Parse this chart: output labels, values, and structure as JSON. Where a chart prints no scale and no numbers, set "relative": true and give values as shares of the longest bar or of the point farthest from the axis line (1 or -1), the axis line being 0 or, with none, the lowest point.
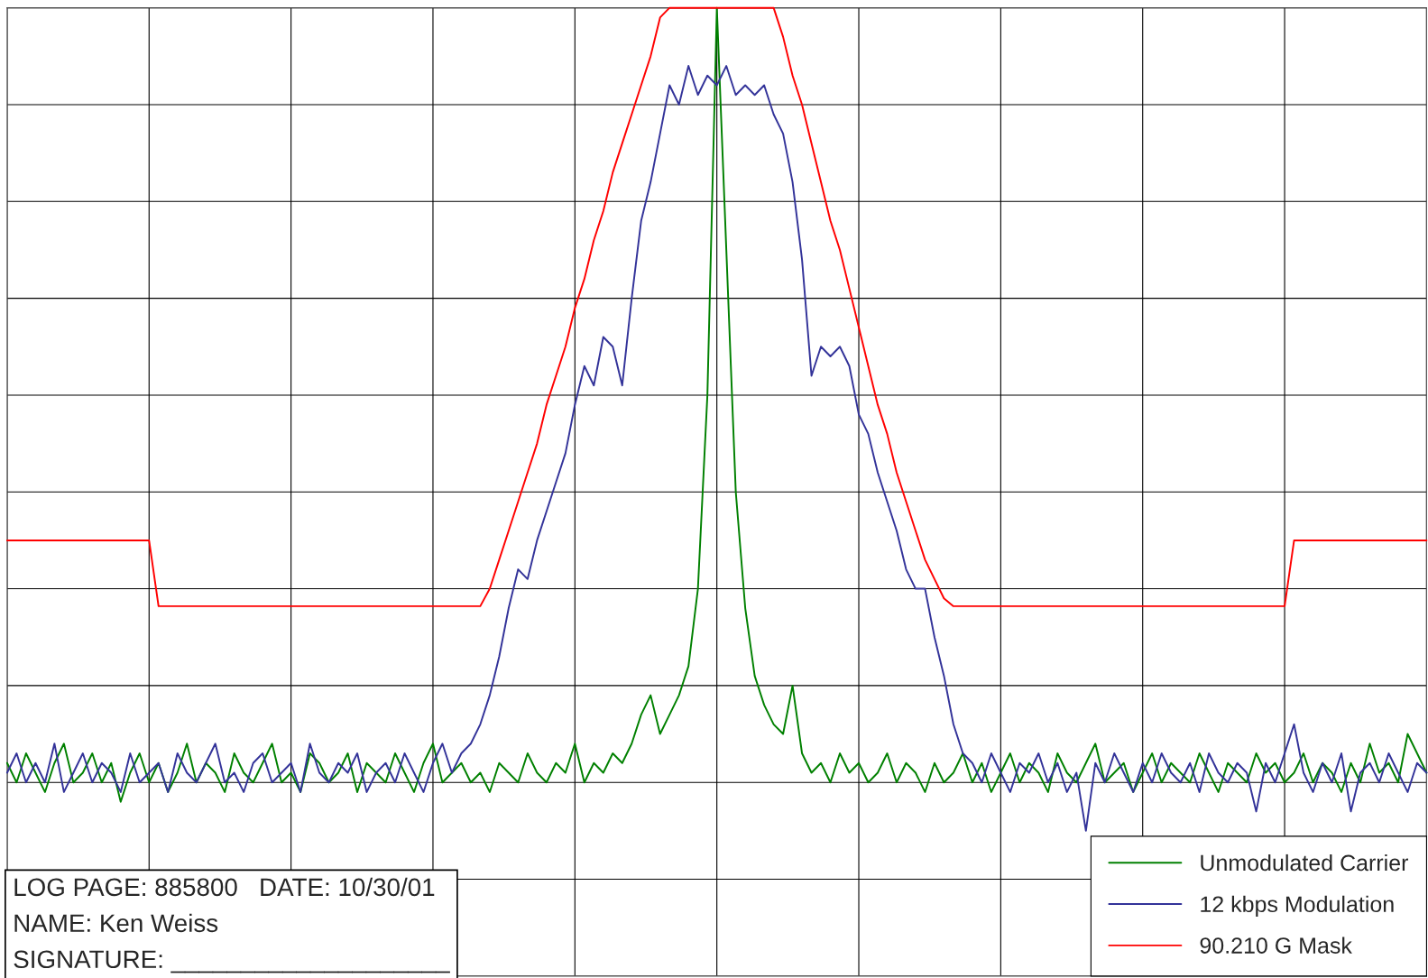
{
  "chart_data": {
    "type": "line",
    "relative": true,
    "grid": true,
    "legend": "bottom right",
    "tick_labels": false,
    "categories": [
      null,
      null,
      null,
      null,
      null,
      null,
      null,
      null,
      null,
      null,
      null,
      null,
      null,
      null,
      null,
      null,
      null,
      null,
      null,
      null,
      null,
      null,
      null,
      null,
      null,
      null,
      null,
      null,
      null,
      null,
      null,
      null,
      null,
      null,
      null,
      null,
      null,
      null,
      null,
      null,
      null,
      null,
      null,
      null,
      null,
      null,
      null,
      null,
      null,
      null,
      null,
      null,
      null,
      null,
      null,
      null,
      null,
      null,
      null,
      null,
      null,
      null,
      null,
      null,
      null,
      null,
      null,
      null,
      null,
      null,
      null,
      null,
      null,
      null,
      null,
      null,
      null,
      null,
      null,
      null,
      null,
      null,
      null,
      null,
      null,
      null,
      null,
      null,
      null,
      null,
      null,
      null,
      null,
      null,
      null,
      null,
      null,
      null,
      null,
      null,
      null,
      null,
      null,
      null,
      null,
      null,
      null,
      null,
      null,
      null,
      null,
      null,
      null,
      null,
      null,
      null,
      null,
      null,
      null,
      null,
      null,
      null,
      null,
      null,
      null,
      null,
      null,
      null,
      null,
      null,
      null,
      null,
      null,
      null,
      null,
      null,
      null,
      null,
      null,
      null,
      null,
      null,
      null,
      null,
      null,
      null,
      null,
      null,
      null,
      null,
      null
    ],
    "series": [
      {
        "name": "Unmodulated Carrier",
        "color": "#008000",
        "values": [
          0.22,
          0.2,
          0.23,
          0.21,
          0.19,
          0.22,
          0.24,
          0.2,
          0.21,
          0.23,
          0.2,
          0.22,
          0.18,
          0.21,
          0.23,
          0.2,
          0.22,
          0.19,
          0.21,
          0.24,
          0.2,
          0.22,
          0.21,
          0.19,
          0.23,
          0.21,
          0.2,
          0.22,
          0.24,
          0.2,
          0.21,
          0.19,
          0.23,
          0.22,
          0.2,
          0.21,
          0.23,
          0.19,
          0.22,
          0.21,
          0.2,
          0.23,
          0.21,
          0.19,
          0.22,
          0.24,
          0.2,
          0.21,
          0.22,
          0.2,
          0.21,
          0.19,
          0.22,
          0.21,
          0.2,
          0.23,
          0.21,
          0.2,
          0.22,
          0.21,
          0.24,
          0.2,
          0.22,
          0.21,
          0.23,
          0.22,
          0.24,
          0.27,
          0.29,
          0.25,
          0.27,
          0.29,
          0.32,
          0.4,
          0.6,
          1.0,
          0.75,
          0.5,
          0.38,
          0.31,
          0.28,
          0.26,
          0.25,
          0.3,
          0.23,
          0.21,
          0.22,
          0.2,
          0.23,
          0.21,
          0.22,
          0.2,
          0.21,
          0.23,
          0.2,
          0.22,
          0.21,
          0.19,
          0.22,
          0.2,
          0.21,
          0.23,
          0.2,
          0.22,
          0.19,
          0.21,
          0.23,
          0.2,
          0.22,
          0.21,
          0.19,
          0.23,
          0.21,
          0.2,
          0.22,
          0.24,
          0.2,
          0.21,
          0.22,
          0.19,
          0.21,
          0.23,
          0.2,
          0.22,
          0.21,
          0.2,
          0.23,
          0.21,
          0.19,
          0.22,
          0.21,
          0.2,
          0.23,
          0.21,
          0.22,
          0.2,
          0.21,
          0.23,
          0.2,
          0.22,
          0.21,
          0.19,
          0.22,
          0.2,
          0.24,
          0.21,
          0.22,
          0.2,
          0.25,
          0.23,
          0.21
        ]
      },
      {
        "name": "12 kbps Modulation",
        "color": "#333399",
        "values": [
          0.21,
          0.23,
          0.2,
          0.22,
          0.2,
          0.24,
          0.19,
          0.21,
          0.23,
          0.2,
          0.22,
          0.21,
          0.19,
          0.23,
          0.2,
          0.21,
          0.22,
          0.19,
          0.23,
          0.21,
          0.2,
          0.22,
          0.24,
          0.2,
          0.21,
          0.19,
          0.22,
          0.23,
          0.2,
          0.21,
          0.22,
          0.19,
          0.24,
          0.21,
          0.2,
          0.22,
          0.21,
          0.23,
          0.19,
          0.21,
          0.22,
          0.2,
          0.23,
          0.21,
          0.19,
          0.22,
          0.24,
          0.21,
          0.23,
          0.24,
          0.26,
          0.29,
          0.33,
          0.38,
          0.42,
          0.41,
          0.45,
          0.48,
          0.51,
          0.54,
          0.59,
          0.63,
          0.61,
          0.66,
          0.65,
          0.61,
          0.7,
          0.78,
          0.82,
          0.87,
          0.92,
          0.9,
          0.94,
          0.91,
          0.93,
          0.92,
          0.94,
          0.91,
          0.92,
          0.91,
          0.92,
          0.89,
          0.87,
          0.82,
          0.74,
          0.62,
          0.65,
          0.64,
          0.65,
          0.63,
          0.58,
          0.56,
          0.52,
          0.49,
          0.46,
          0.42,
          0.4,
          0.4,
          0.35,
          0.31,
          0.26,
          0.23,
          0.22,
          0.2,
          0.23,
          0.21,
          0.19,
          0.22,
          0.21,
          0.23,
          0.2,
          0.22,
          0.19,
          0.21,
          0.15,
          0.22,
          0.2,
          0.23,
          0.21,
          0.19,
          0.22,
          0.2,
          0.23,
          0.21,
          0.2,
          0.22,
          0.19,
          0.23,
          0.21,
          0.2,
          0.22,
          0.21,
          0.17,
          0.22,
          0.2,
          0.23,
          0.26,
          0.21,
          0.19,
          0.22,
          0.2,
          0.23,
          0.17,
          0.21,
          0.22,
          0.2,
          0.23,
          0.21,
          0.19,
          0.22,
          0.21
        ]
      },
      {
        "name": "90.210 G Mask",
        "color": "#ff0000",
        "values": [
          0.45,
          0.45,
          0.45,
          0.45,
          0.45,
          0.45,
          0.45,
          0.45,
          0.45,
          0.45,
          0.45,
          0.45,
          0.45,
          0.45,
          0.45,
          0.45,
          0.382,
          0.382,
          0.382,
          0.382,
          0.382,
          0.382,
          0.382,
          0.382,
          0.382,
          0.382,
          0.382,
          0.382,
          0.382,
          0.382,
          0.382,
          0.382,
          0.382,
          0.382,
          0.382,
          0.382,
          0.382,
          0.382,
          0.382,
          0.382,
          0.382,
          0.382,
          0.382,
          0.382,
          0.382,
          0.382,
          0.382,
          0.382,
          0.382,
          0.382,
          0.382,
          0.4,
          0.43,
          0.46,
          0.49,
          0.52,
          0.55,
          0.59,
          0.62,
          0.65,
          0.69,
          0.72,
          0.76,
          0.79,
          0.83,
          0.86,
          0.89,
          0.92,
          0.95,
          0.99,
          1.0,
          1.0,
          1.0,
          1.0,
          1.0,
          1.0,
          1.0,
          1.0,
          1.0,
          1.0,
          1.0,
          1.0,
          0.97,
          0.93,
          0.9,
          0.86,
          0.82,
          0.78,
          0.75,
          0.71,
          0.67,
          0.63,
          0.59,
          0.56,
          0.52,
          0.49,
          0.46,
          0.43,
          0.41,
          0.39,
          0.382,
          0.382,
          0.382,
          0.382,
          0.382,
          0.382,
          0.382,
          0.382,
          0.382,
          0.382,
          0.382,
          0.382,
          0.382,
          0.382,
          0.382,
          0.382,
          0.382,
          0.382,
          0.382,
          0.382,
          0.382,
          0.382,
          0.382,
          0.382,
          0.382,
          0.382,
          0.382,
          0.382,
          0.382,
          0.382,
          0.382,
          0.382,
          0.382,
          0.382,
          0.382,
          0.382,
          0.45,
          0.45,
          0.45,
          0.45,
          0.45,
          0.45,
          0.45,
          0.45,
          0.45,
          0.45,
          0.45,
          0.45,
          0.45,
          0.45,
          0.45
        ]
      }
    ],
    "annotations": [
      "LOG PAGE: 885800   DATE: 10/30/01",
      "NAME: Ken Weiss",
      "SIGNATURE: ____________________"
    ]
  }
}
